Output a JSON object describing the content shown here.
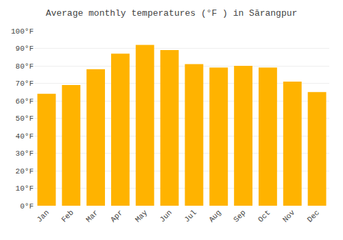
{
  "chart_data": {
    "type": "bar",
    "title": "Average monthly temperatures (°F ) in Sārangpur",
    "categories": [
      "Jan",
      "Feb",
      "Mar",
      "Apr",
      "May",
      "Jun",
      "Jul",
      "Aug",
      "Sep",
      "Oct",
      "Nov",
      "Dec"
    ],
    "values": [
      64,
      69,
      78,
      87,
      92,
      89,
      81,
      79,
      80,
      79,
      71,
      65
    ],
    "color": "#FFB300",
    "ylim": [
      0,
      100
    ],
    "yticks": [
      {
        "value": 0,
        "label": "0°F"
      },
      {
        "value": 10,
        "label": "10°F"
      },
      {
        "value": 20,
        "label": "20°F"
      },
      {
        "value": 30,
        "label": "30°F"
      },
      {
        "value": 40,
        "label": "40°F"
      },
      {
        "value": 50,
        "label": "50°F"
      },
      {
        "value": 60,
        "label": "60°F"
      },
      {
        "value": 70,
        "label": "70°F"
      },
      {
        "value": 80,
        "label": "80°F"
      },
      {
        "value": 90,
        "label": "90°F"
      },
      {
        "value": 100,
        "label": "100°F"
      }
    ],
    "grid": true
  }
}
